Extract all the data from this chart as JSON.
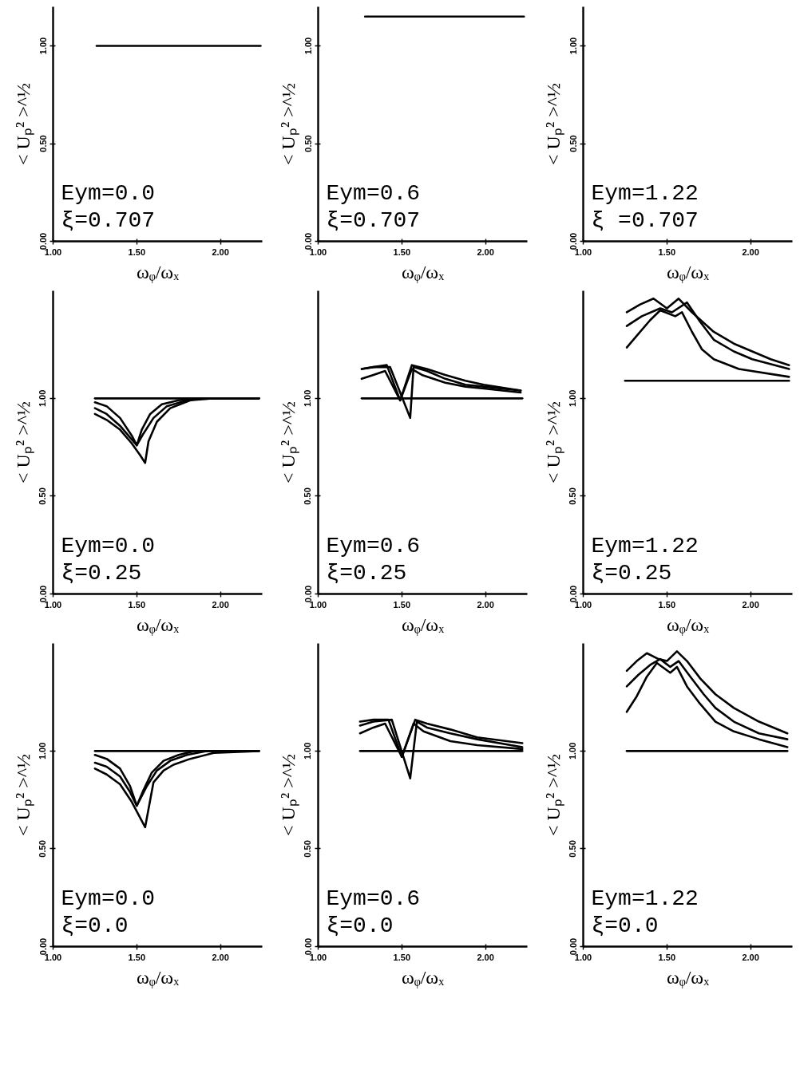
{
  "chart_data": [
    {
      "type": "line",
      "xlabel": "ωᵩ/ωₓ",
      "ylabel": "< Uₚ² >^½",
      "xlim": [
        1.0,
        2.25
      ],
      "ylim": [
        0,
        1.2
      ],
      "xticks": [
        {
          "value": 1,
          "label": "1.00"
        },
        {
          "value": 1.5,
          "label": "1.50"
        },
        {
          "value": 2,
          "label": "2.00"
        }
      ],
      "yticks": [
        {
          "value": 0,
          "label": "0.00"
        },
        {
          "value": 0.5,
          "label": "0.50"
        },
        {
          "value": 1,
          "label": "1.00"
        }
      ],
      "annotations": [
        "Eym=0.0",
        "ξ=0.707"
      ],
      "series": [
        {
          "color": "#000000",
          "x": [
            1.26,
            2.24
          ],
          "values": [
            1.0,
            1.0
          ]
        }
      ]
    },
    {
      "type": "line",
      "xlabel": "ωᵩ/ωₓ",
      "ylabel": "< Uₚ² >^½",
      "xlim": [
        1.0,
        2.25
      ],
      "ylim": [
        0,
        1.2
      ],
      "xticks": [
        {
          "value": 1,
          "label": "1.00"
        },
        {
          "value": 1.5,
          "label": "1.50"
        },
        {
          "value": 2,
          "label": "2.00"
        }
      ],
      "yticks": [
        {
          "value": 0,
          "label": "0.00"
        },
        {
          "value": 0.5,
          "label": "0.50"
        },
        {
          "value": 1,
          "label": "1.00"
        }
      ],
      "annotations": [
        "Eym=0.6",
        "ξ=0.707"
      ],
      "series": [
        {
          "color": "#000000",
          "x": [
            1.28,
            2.23
          ],
          "values": [
            1.15,
            1.15
          ]
        }
      ]
    },
    {
      "type": "line",
      "xlabel": "ωᵩ/ωₓ",
      "ylabel": "< Uₚ² >^½",
      "xlim": [
        1.0,
        2.25
      ],
      "ylim": [
        0,
        1.2
      ],
      "xticks": [
        {
          "value": 1,
          "label": "1.00"
        },
        {
          "value": 1.5,
          "label": "1.50"
        },
        {
          "value": 2,
          "label": "2.00"
        }
      ],
      "yticks": [
        {
          "value": 0,
          "label": "0.00"
        },
        {
          "value": 0.5,
          "label": "0.50"
        },
        {
          "value": 1,
          "label": "1.00"
        }
      ],
      "annotations": [
        "Eym=1.22",
        "ξ =0.707"
      ]
    },
    {
      "type": "line",
      "xlabel": "ωᵩ/ωₓ",
      "ylabel": "< Uₚ² >^½",
      "xlim": [
        1.0,
        2.25
      ],
      "ylim": [
        0,
        1.55
      ],
      "xticks": [
        {
          "value": 1,
          "label": "1.00"
        },
        {
          "value": 1.5,
          "label": "1.50"
        },
        {
          "value": 2,
          "label": "2.00"
        }
      ],
      "yticks": [
        {
          "value": 0,
          "label": "0.00"
        },
        {
          "value": 0.5,
          "label": "0.50"
        },
        {
          "value": 1,
          "label": "1.00"
        }
      ],
      "annotations": [
        "Eym=0.0",
        "ξ=0.25"
      ],
      "series": [
        {
          "color": "#000000",
          "x": [
            1.25,
            2.23
          ],
          "values": [
            1.0,
            1.0
          ]
        },
        {
          "color": "#000000",
          "x": [
            1.25,
            1.32,
            1.4,
            1.47,
            1.5,
            1.53,
            1.58,
            1.65,
            1.75,
            1.85,
            2.23
          ],
          "values": [
            0.98,
            0.96,
            0.9,
            0.81,
            0.76,
            0.84,
            0.92,
            0.97,
            0.99,
            1.0,
            1.0
          ]
        },
        {
          "color": "#000000",
          "x": [
            1.25,
            1.32,
            1.4,
            1.47,
            1.5,
            1.54,
            1.6,
            1.68,
            1.8,
            1.9,
            2.23
          ],
          "values": [
            0.95,
            0.92,
            0.86,
            0.79,
            0.76,
            0.82,
            0.9,
            0.96,
            0.99,
            1.0,
            1.0
          ]
        },
        {
          "color": "#000000",
          "x": [
            1.25,
            1.32,
            1.4,
            1.47,
            1.52,
            1.55,
            1.57,
            1.62,
            1.7,
            1.82,
            1.95,
            2.23
          ],
          "values": [
            0.92,
            0.89,
            0.84,
            0.77,
            0.71,
            0.67,
            0.78,
            0.88,
            0.95,
            0.99,
            1.0,
            1.0
          ]
        }
      ]
    },
    {
      "type": "line",
      "xlabel": "ωᵩ/ωₓ",
      "ylabel": "< Uₚ² >^½",
      "xlim": [
        1.0,
        2.25
      ],
      "ylim": [
        0,
        1.55
      ],
      "xticks": [
        {
          "value": 1,
          "label": "1.00"
        },
        {
          "value": 1.5,
          "label": "1.50"
        },
        {
          "value": 2,
          "label": "2.00"
        }
      ],
      "yticks": [
        {
          "value": 0,
          "label": "0.00"
        },
        {
          "value": 0.5,
          "label": "0.50"
        },
        {
          "value": 1,
          "label": "1.00"
        }
      ],
      "annotations": [
        "Eym=0.6",
        "ξ=0.25"
      ],
      "series": [
        {
          "color": "#000000",
          "x": [
            1.26,
            2.22
          ],
          "values": [
            1.0,
            1.0
          ]
        },
        {
          "color": "#000000",
          "x": [
            1.26,
            1.33,
            1.41,
            1.49,
            1.56,
            1.65,
            1.76,
            1.88,
            1.99,
            2.21
          ],
          "values": [
            1.15,
            1.16,
            1.17,
            0.99,
            1.17,
            1.15,
            1.12,
            1.09,
            1.07,
            1.04
          ]
        },
        {
          "color": "#000000",
          "x": [
            1.26,
            1.33,
            1.43,
            1.55,
            1.57,
            1.65,
            1.76,
            1.88,
            1.99,
            2.21
          ],
          "values": [
            1.15,
            1.16,
            1.16,
            0.9,
            1.16,
            1.14,
            1.1,
            1.07,
            1.06,
            1.04
          ]
        },
        {
          "color": "#000000",
          "x": [
            1.26,
            1.33,
            1.4,
            1.49,
            1.56,
            1.62,
            1.76,
            1.88,
            1.99,
            2.21
          ],
          "values": [
            1.1,
            1.12,
            1.14,
            0.99,
            1.15,
            1.12,
            1.08,
            1.06,
            1.05,
            1.03
          ]
        }
      ]
    },
    {
      "type": "line",
      "xlabel": "ωᵩ/ωₓ",
      "ylabel": "< Uₚ² >^½",
      "xlim": [
        1.0,
        2.25
      ],
      "ylim": [
        0,
        1.55
      ],
      "xticks": [
        {
          "value": 1,
          "label": "1.00"
        },
        {
          "value": 1.5,
          "label": "1.50"
        },
        {
          "value": 2,
          "label": "2.00"
        }
      ],
      "yticks": [
        {
          "value": 0,
          "label": "0.00"
        },
        {
          "value": 0.5,
          "label": "0.50"
        },
        {
          "value": 1,
          "label": "1.00"
        }
      ],
      "annotations": [
        "Eym=1.22",
        "ξ=0.25"
      ],
      "series": [
        {
          "color": "#000000",
          "x": [
            1.25,
            2.23
          ],
          "values": [
            1.09,
            1.09
          ]
        },
        {
          "color": "#000000",
          "x": [
            1.26,
            1.34,
            1.42,
            1.5,
            1.57,
            1.65,
            1.78,
            1.9,
            2.01,
            2.12,
            2.23
          ],
          "values": [
            1.44,
            1.48,
            1.51,
            1.46,
            1.51,
            1.44,
            1.34,
            1.28,
            1.24,
            1.2,
            1.17
          ]
        },
        {
          "color": "#000000",
          "x": [
            1.26,
            1.35,
            1.46,
            1.53,
            1.62,
            1.7,
            1.78,
            1.9,
            2.01,
            2.23
          ],
          "values": [
            1.37,
            1.42,
            1.46,
            1.44,
            1.49,
            1.39,
            1.3,
            1.24,
            1.2,
            1.15
          ]
        },
        {
          "color": "#000000",
          "x": [
            1.26,
            1.33,
            1.4,
            1.46,
            1.55,
            1.59,
            1.65,
            1.71,
            1.78,
            1.93,
            2.23
          ],
          "values": [
            1.26,
            1.33,
            1.4,
            1.45,
            1.42,
            1.44,
            1.34,
            1.25,
            1.2,
            1.15,
            1.11
          ]
        }
      ]
    },
    {
      "type": "line",
      "xlabel": "ωᵩ/ωₓ",
      "ylabel": "< Uₚ² >^½",
      "xlim": [
        1.0,
        2.25
      ],
      "ylim": [
        0,
        1.55
      ],
      "xticks": [
        {
          "value": 1,
          "label": "1.00"
        },
        {
          "value": 1.5,
          "label": "1.50"
        },
        {
          "value": 2,
          "label": "2.00"
        }
      ],
      "yticks": [
        {
          "value": 0,
          "label": "0.00"
        },
        {
          "value": 0.5,
          "label": "0.50"
        },
        {
          "value": 1,
          "label": "1.00"
        }
      ],
      "annotations": [
        "Eym=0.0",
        "ξ=0.0"
      ],
      "series": [
        {
          "color": "#000000",
          "x": [
            1.25,
            2.23
          ],
          "values": [
            1.0,
            1.0
          ]
        },
        {
          "color": "#000000",
          "x": [
            1.25,
            1.32,
            1.4,
            1.46,
            1.5,
            1.54,
            1.59,
            1.66,
            1.75,
            1.85,
            2.23
          ],
          "values": [
            0.98,
            0.96,
            0.91,
            0.82,
            0.72,
            0.8,
            0.89,
            0.95,
            0.98,
            1.0,
            1.0
          ]
        },
        {
          "color": "#000000",
          "x": [
            1.25,
            1.32,
            1.4,
            1.46,
            1.5,
            1.56,
            1.62,
            1.7,
            1.8,
            1.92,
            2.23
          ],
          "values": [
            0.94,
            0.92,
            0.87,
            0.79,
            0.72,
            0.82,
            0.9,
            0.95,
            0.98,
            1.0,
            1.0
          ]
        },
        {
          "color": "#000000",
          "x": [
            1.25,
            1.32,
            1.4,
            1.47,
            1.55,
            1.6,
            1.66,
            1.72,
            1.82,
            1.96,
            2.23
          ],
          "values": [
            0.91,
            0.88,
            0.83,
            0.74,
            0.61,
            0.84,
            0.9,
            0.93,
            0.96,
            0.99,
            1.0
          ]
        }
      ]
    },
    {
      "type": "line",
      "xlabel": "ωᵩ/ωₓ",
      "ylabel": "< Uₚ² >^½",
      "xlim": [
        1.0,
        2.25
      ],
      "ylim": [
        0,
        1.55
      ],
      "xticks": [
        {
          "value": 1,
          "label": "1.00"
        },
        {
          "value": 1.5,
          "label": "1.50"
        },
        {
          "value": 2,
          "label": "2.00"
        }
      ],
      "yticks": [
        {
          "value": 0,
          "label": "0.00"
        },
        {
          "value": 0.5,
          "label": "0.50"
        },
        {
          "value": 1,
          "label": "1.00"
        }
      ],
      "annotations": [
        "Eym=0.6",
        "ξ=0.0"
      ],
      "series": [
        {
          "color": "#000000",
          "x": [
            1.25,
            2.22
          ],
          "values": [
            1.0,
            1.0
          ]
        },
        {
          "color": "#000000",
          "x": [
            1.25,
            1.33,
            1.42,
            1.5,
            1.58,
            1.65,
            1.79,
            1.95,
            2.22
          ],
          "values": [
            1.15,
            1.16,
            1.16,
            0.97,
            1.16,
            1.14,
            1.11,
            1.07,
            1.04
          ]
        },
        {
          "color": "#000000",
          "x": [
            1.25,
            1.33,
            1.44,
            1.55,
            1.59,
            1.65,
            1.79,
            1.95,
            2.22
          ],
          "values": [
            1.13,
            1.15,
            1.16,
            0.86,
            1.15,
            1.12,
            1.09,
            1.06,
            1.02
          ]
        },
        {
          "color": "#000000",
          "x": [
            1.25,
            1.33,
            1.4,
            1.5,
            1.57,
            1.63,
            1.79,
            1.95,
            2.22
          ],
          "values": [
            1.09,
            1.12,
            1.14,
            0.97,
            1.14,
            1.1,
            1.05,
            1.03,
            1.01
          ]
        }
      ]
    },
    {
      "type": "line",
      "xlabel": "ωᵩ/ωₓ",
      "ylabel": "< Uₚ² >^½",
      "xlim": [
        1.0,
        2.25
      ],
      "ylim": [
        0,
        1.55
      ],
      "xticks": [
        {
          "value": 1,
          "label": "1.00"
        },
        {
          "value": 1.5,
          "label": "1.50"
        },
        {
          "value": 2,
          "label": "2.00"
        }
      ],
      "yticks": [
        {
          "value": 0,
          "label": "0.00"
        },
        {
          "value": 0.5,
          "label": "0.50"
        },
        {
          "value": 1,
          "label": "1.00"
        }
      ],
      "annotations": [
        "Eym=1.22",
        "ξ=0.0"
      ],
      "series": [
        {
          "color": "#000000",
          "x": [
            1.26,
            2.22
          ],
          "values": [
            1.0,
            1.0
          ]
        },
        {
          "color": "#000000",
          "x": [
            1.26,
            1.32,
            1.38,
            1.45,
            1.5,
            1.56,
            1.62,
            1.7,
            1.79,
            1.9,
            2.05,
            2.22
          ],
          "values": [
            1.41,
            1.46,
            1.5,
            1.47,
            1.46,
            1.51,
            1.46,
            1.37,
            1.29,
            1.22,
            1.15,
            1.09
          ]
        },
        {
          "color": "#000000",
          "x": [
            1.26,
            1.33,
            1.4,
            1.46,
            1.52,
            1.57,
            1.64,
            1.72,
            1.79,
            1.9,
            2.05,
            2.22
          ],
          "values": [
            1.33,
            1.39,
            1.44,
            1.47,
            1.43,
            1.46,
            1.38,
            1.29,
            1.22,
            1.15,
            1.09,
            1.06
          ]
        },
        {
          "color": "#000000",
          "x": [
            1.26,
            1.32,
            1.38,
            1.44,
            1.52,
            1.56,
            1.62,
            1.69,
            1.79,
            1.9,
            2.05,
            2.22
          ],
          "values": [
            1.2,
            1.28,
            1.38,
            1.45,
            1.4,
            1.43,
            1.33,
            1.25,
            1.15,
            1.1,
            1.06,
            1.02
          ]
        }
      ]
    }
  ]
}
